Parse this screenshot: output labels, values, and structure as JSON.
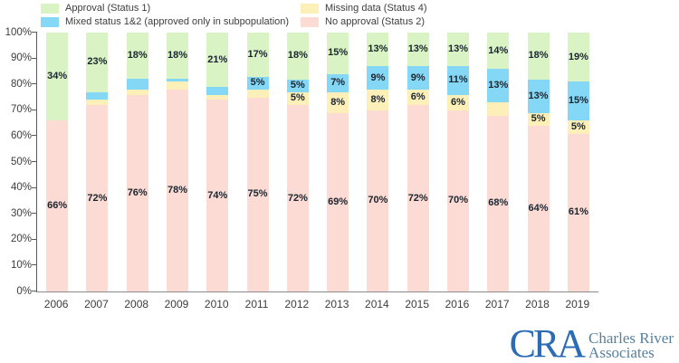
{
  "legend": {
    "items": [
      {
        "key": "approval",
        "label": "Approval (Status 1)",
        "color": "#d9f3c5"
      },
      {
        "key": "mixed",
        "label": "Mixed status 1&2 (approved only in subpopulation)",
        "color": "#84d7f5"
      },
      {
        "key": "missing",
        "label": "Missing data (Status 4)",
        "color": "#fcefb8"
      },
      {
        "key": "no_approval",
        "label": "No approval (Status 2)",
        "color": "#fbdbd3"
      }
    ]
  },
  "chart_data": {
    "type": "bar",
    "stacked": true,
    "title": "",
    "xlabel": "",
    "ylabel": "",
    "ylim": [
      0,
      100
    ],
    "grid": false,
    "legend_position": "top",
    "yticks": [
      "0%",
      "10%",
      "20%",
      "30%",
      "40%",
      "50%",
      "60%",
      "70%",
      "80%",
      "90%",
      "100%"
    ],
    "categories": [
      "2006",
      "2007",
      "2008",
      "2009",
      "2010",
      "2011",
      "2012",
      "2013",
      "2014",
      "2015",
      "2016",
      "2017",
      "2018",
      "2019"
    ],
    "series": [
      {
        "name": "No approval (Status 2)",
        "key": "no_approval",
        "color": "#fbdbd3",
        "values": [
          66,
          72,
          76,
          78,
          74,
          75,
          72,
          69,
          70,
          72,
          70,
          68,
          64,
          61
        ],
        "labels": [
          "66%",
          "72%",
          "76%",
          "78%",
          "74%",
          "75%",
          "72%",
          "69%",
          "70%",
          "72%",
          "70%",
          "68%",
          "64%",
          "61%"
        ]
      },
      {
        "name": "Missing data (Status 4)",
        "key": "missing",
        "color": "#fcefb8",
        "values": [
          0,
          2,
          2,
          3,
          2,
          3,
          5,
          8,
          8,
          6,
          6,
          5,
          5,
          5
        ],
        "labels": [
          "",
          "",
          "",
          "",
          "",
          "",
          "5%",
          "8%",
          "8%",
          "6%",
          "6%",
          "",
          "5%",
          "5%"
        ]
      },
      {
        "name": "Mixed status 1&2 (approved only in subpopulation)",
        "key": "mixed",
        "color": "#84d7f5",
        "values": [
          0,
          3,
          4,
          1,
          3,
          5,
          5,
          7,
          9,
          9,
          11,
          13,
          13,
          15
        ],
        "labels": [
          "",
          "",
          "",
          "",
          "",
          "5%",
          "5%",
          "7%",
          "9%",
          "9%",
          "11%",
          "13%",
          "13%",
          "15%"
        ]
      },
      {
        "name": "Approval (Status 1)",
        "key": "approval",
        "color": "#d9f3c5",
        "values": [
          34,
          23,
          18,
          18,
          21,
          17,
          18,
          15,
          13,
          13,
          13,
          14,
          18,
          19
        ],
        "labels": [
          "34%",
          "23%",
          "18%",
          "18%",
          "21%",
          "17%",
          "18%",
          "15%",
          "13%",
          "13%",
          "13%",
          "14%",
          "18%",
          "19%"
        ]
      }
    ]
  },
  "logo": {
    "acronym": "CRA",
    "name_line1": "Charles River",
    "name_line2": "Associates"
  }
}
